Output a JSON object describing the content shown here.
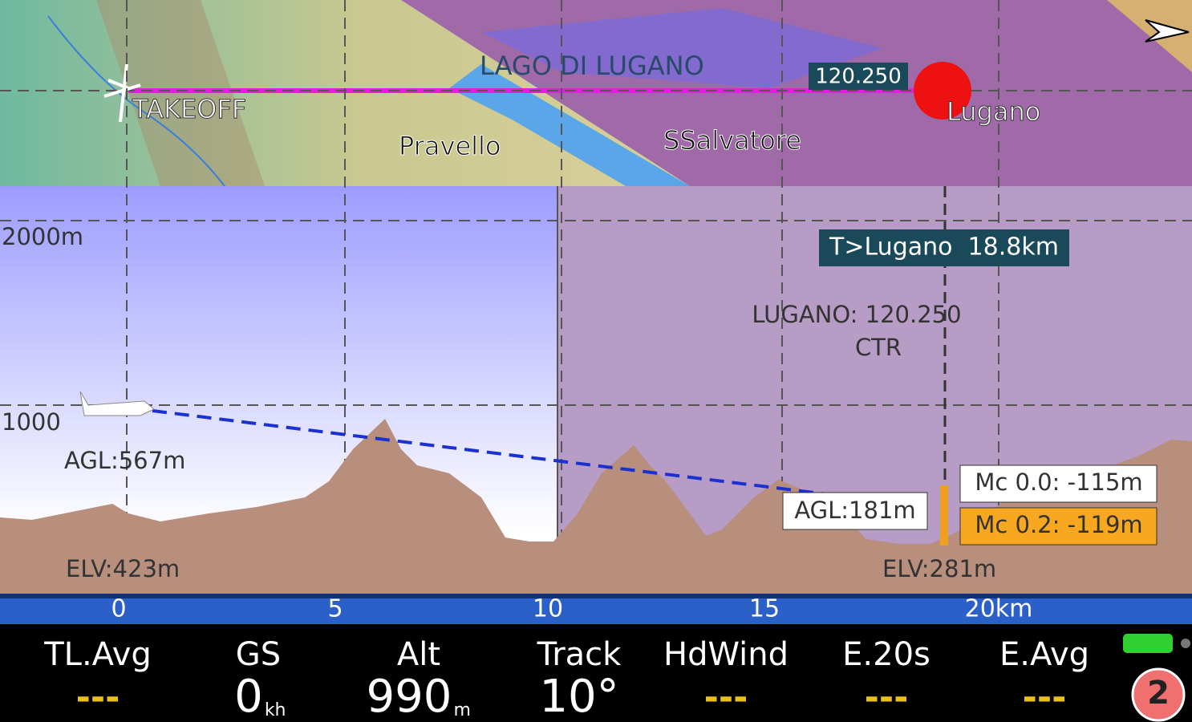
{
  "map": {
    "lake": "LAGO DI LUGANO",
    "frequency": "120.250",
    "takeoff": "TAKEOFF",
    "peaks": [
      "Pravello",
      "SSalvatore"
    ],
    "destination": "Lugano"
  },
  "profile": {
    "alt_labels": [
      "2000m",
      "1000"
    ],
    "agl_start": "AGL:567m",
    "elv_start": "ELV:423m",
    "target": "T>Lugano  18.8km",
    "airspace_name": "LUGANO: 120.250",
    "airspace_class": "CTR",
    "agl_end": "AGL:181m",
    "elv_end": "ELV:281m",
    "mc_values": [
      "Mc 0.0: -115m",
      "Mc 0.2: -119m"
    ],
    "x_axis_labels": [
      "0",
      "5",
      "10",
      "15",
      "20km"
    ]
  },
  "infobar": {
    "items": [
      {
        "label": "TL.Avg",
        "value": "---"
      },
      {
        "label": "GS",
        "value": "0",
        "unit": "kh"
      },
      {
        "label": "Alt",
        "value": "990",
        "unit": "m"
      },
      {
        "label": "Track",
        "value": "10°"
      },
      {
        "label": "HdWind",
        "value": "---"
      },
      {
        "label": "E.20s",
        "value": "---"
      },
      {
        "label": "E.Avg",
        "value": "---"
      }
    ],
    "badge": "2"
  }
}
